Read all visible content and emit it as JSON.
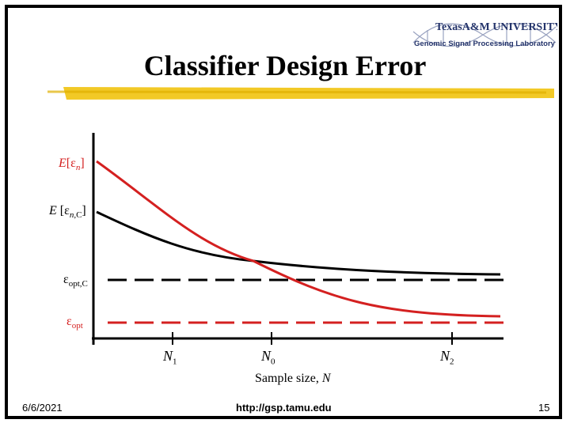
{
  "slide": {
    "title": "Classifier Design Error",
    "date": "6/6/2021",
    "url": "http://gsp.tamu.edu",
    "page_number": "15"
  },
  "logo": {
    "university": "TexasA&M UNIVERSITY",
    "lab": "Genomic Signal Processing Laboratory"
  },
  "chart_data": {
    "type": "line",
    "xlabel": "Sample size, N",
    "x_ticks": [
      "N1",
      "N0",
      "N2"
    ],
    "series": [
      {
        "name": "E[εn]",
        "color": "#d42020",
        "style": "solid",
        "description": "decreasing curve from high value toward εopt"
      },
      {
        "name": "E[εn,C]",
        "color": "#000000",
        "style": "solid",
        "description": "decreasing curve from mid value toward εopt,C"
      },
      {
        "name": "εopt,C",
        "color": "#000000",
        "style": "dashed",
        "description": "constant level"
      },
      {
        "name": "εopt",
        "color": "#d42020",
        "style": "dashed",
        "description": "constant level"
      }
    ],
    "grid": false
  },
  "colors": {
    "red": "#d42020",
    "black": "#000000",
    "highlight": "#f0c000",
    "logo_blue": "#24346b"
  }
}
